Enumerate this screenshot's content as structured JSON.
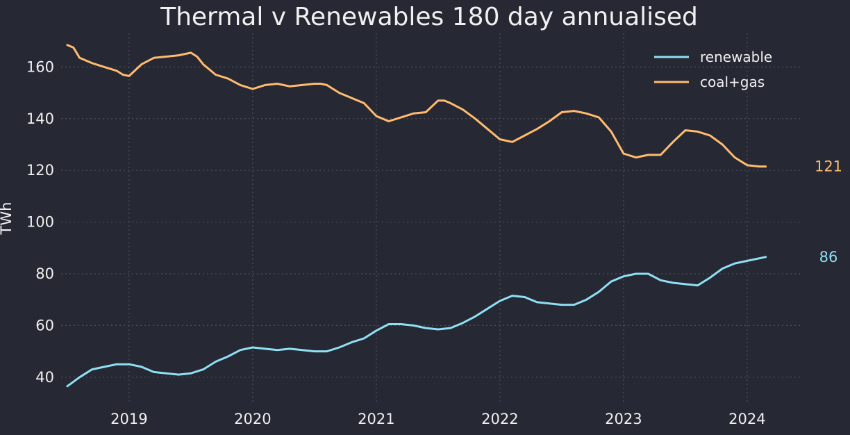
{
  "chart_data": {
    "type": "line",
    "title": "Thermal v Renewables 180 day annualised",
    "xlabel": "",
    "ylabel": "TWh",
    "xlim": [
      2018.45,
      2024.45
    ],
    "ylim": [
      30,
      173
    ],
    "x_ticks": [
      2019,
      2020,
      2021,
      2022,
      2023,
      2024
    ],
    "x_tick_labels": [
      "2019",
      "2020",
      "2021",
      "2022",
      "2023",
      "2024"
    ],
    "y_ticks": [
      40,
      60,
      80,
      100,
      120,
      140,
      160
    ],
    "y_tick_labels": [
      "40",
      "60",
      "80",
      "100",
      "120",
      "140",
      "160"
    ],
    "grid": true,
    "legend_position": "top-right",
    "series": [
      {
        "name": "renewable",
        "color": "#8fdff5",
        "end_label": "86",
        "x": [
          2018.5,
          2018.6,
          2018.7,
          2018.8,
          2018.9,
          2019.0,
          2019.1,
          2019.2,
          2019.3,
          2019.4,
          2019.5,
          2019.6,
          2019.7,
          2019.8,
          2019.9,
          2020.0,
          2020.1,
          2020.2,
          2020.3,
          2020.4,
          2020.5,
          2020.6,
          2020.7,
          2020.8,
          2020.9,
          2021.0,
          2021.1,
          2021.2,
          2021.3,
          2021.4,
          2021.5,
          2021.6,
          2021.7,
          2021.8,
          2021.9,
          2022.0,
          2022.1,
          2022.2,
          2022.3,
          2022.4,
          2022.5,
          2022.6,
          2022.7,
          2022.8,
          2022.9,
          2023.0,
          2023.1,
          2023.2,
          2023.3,
          2023.4,
          2023.5,
          2023.6,
          2023.7,
          2023.8,
          2023.9,
          2024.0,
          2024.1,
          2024.15
        ],
        "values": [
          36.5,
          40,
          43,
          44,
          45,
          45,
          44,
          42,
          41.5,
          41,
          41.5,
          43,
          46,
          48,
          50.5,
          51.5,
          51,
          50.5,
          51,
          50.5,
          50,
          50,
          51.5,
          53.5,
          55,
          58,
          60.5,
          60.5,
          60,
          59,
          58.5,
          59,
          61,
          63.5,
          66.5,
          69.5,
          71.5,
          71,
          69,
          68.5,
          68,
          68,
          70,
          73,
          77,
          79,
          80,
          80,
          77.5,
          76.5,
          76,
          75.5,
          78.5,
          82,
          84,
          85,
          86,
          86.5
        ]
      },
      {
        "name": "coal+gas",
        "color": "#ffbb70",
        "end_label": "121",
        "x": [
          2018.5,
          2018.55,
          2018.6,
          2018.7,
          2018.8,
          2018.9,
          2018.95,
          2019.0,
          2019.1,
          2019.2,
          2019.3,
          2019.4,
          2019.5,
          2019.55,
          2019.6,
          2019.7,
          2019.8,
          2019.9,
          2020.0,
          2020.1,
          2020.2,
          2020.3,
          2020.4,
          2020.5,
          2020.55,
          2020.6,
          2020.7,
          2020.8,
          2020.9,
          2021.0,
          2021.1,
          2021.2,
          2021.3,
          2021.4,
          2021.5,
          2021.55,
          2021.6,
          2021.7,
          2021.8,
          2021.9,
          2022.0,
          2022.1,
          2022.2,
          2022.3,
          2022.4,
          2022.5,
          2022.6,
          2022.7,
          2022.8,
          2022.9,
          2023.0,
          2023.1,
          2023.2,
          2023.3,
          2023.4,
          2023.5,
          2023.6,
          2023.7,
          2023.8,
          2023.9,
          2024.0,
          2024.1,
          2024.15
        ],
        "values": [
          168.5,
          167.5,
          163.5,
          161.5,
          160,
          158.5,
          157,
          156.5,
          161,
          163.5,
          164,
          164.5,
          165.5,
          164,
          161,
          157,
          155.5,
          153,
          151.5,
          153,
          153.5,
          152.5,
          153,
          153.5,
          153.5,
          153,
          150,
          148,
          146,
          141,
          139,
          140.5,
          142,
          142.5,
          147,
          147,
          146,
          143.5,
          140,
          136,
          132,
          131,
          133.5,
          136,
          139,
          142.5,
          143,
          142,
          140.5,
          135,
          126.5,
          125,
          126,
          126,
          131,
          135.5,
          135,
          133.5,
          130,
          125,
          122,
          121.5,
          121.5
        ]
      }
    ]
  }
}
